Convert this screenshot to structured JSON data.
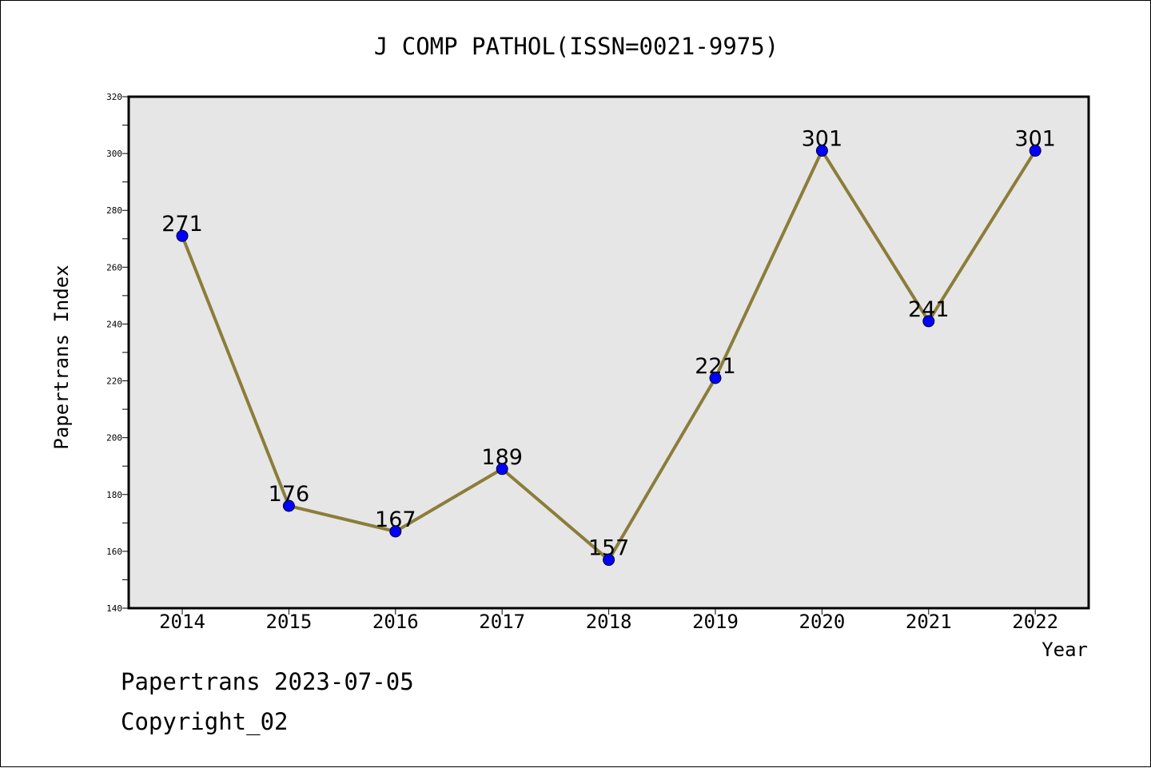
{
  "chart_data": {
    "type": "line",
    "title": "J COMP PATHOL(ISSN=0021-9975)",
    "xlabel": "Year",
    "ylabel": "Papertrans Index",
    "x": [
      "2014",
      "2015",
      "2016",
      "2017",
      "2018",
      "2019",
      "2020",
      "2021",
      "2022"
    ],
    "values": [
      271,
      176,
      167,
      189,
      157,
      221,
      301,
      241,
      301
    ],
    "ylim": [
      140,
      320
    ],
    "yticks": [
      140,
      160,
      180,
      200,
      220,
      240,
      260,
      280,
      300,
      320
    ],
    "grid": false,
    "line_color": "#8B7D3A",
    "marker_color": "#0000FF",
    "plot_background": "#E6E6E6"
  },
  "footer": {
    "line1": "Papertrans 2023-07-05",
    "line2": "Copyright_02"
  }
}
